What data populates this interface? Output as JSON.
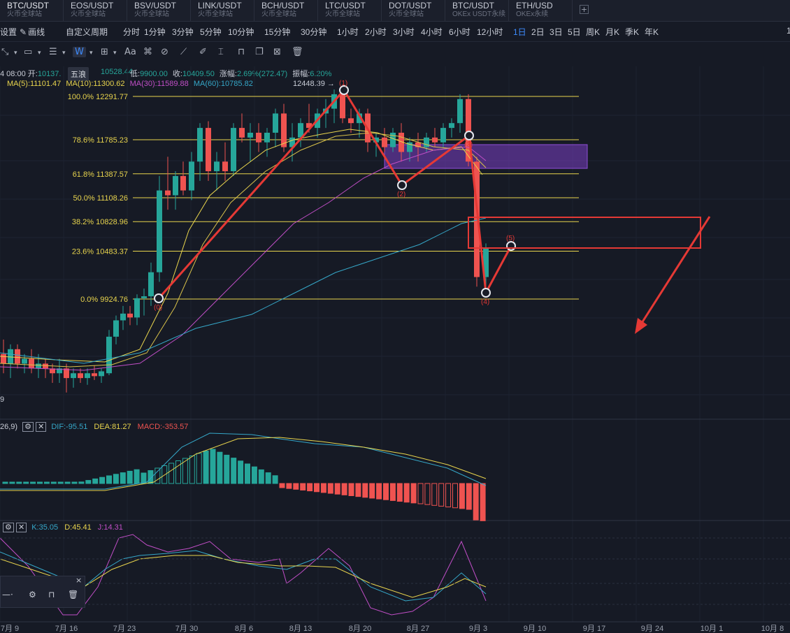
{
  "tabs": [
    {
      "pair": "BTC/USDT",
      "exchange": "火币全球站"
    },
    {
      "pair": "EOS/USDT",
      "exchange": "火币全球站"
    },
    {
      "pair": "BSV/USDT",
      "exchange": "火币全球站"
    },
    {
      "pair": "LINK/USDT",
      "exchange": "火币全球站"
    },
    {
      "pair": "BCH/USDT",
      "exchange": "火币全球站"
    },
    {
      "pair": "LTC/USDT",
      "exchange": "火币全球站"
    },
    {
      "pair": "DOT/USDT",
      "exchange": "火币全球站"
    },
    {
      "pair": "BTC/USDT",
      "exchange": "OKEx USDT永续"
    },
    {
      "pair": "ETH/USD",
      "exchange": "OKEx永续"
    }
  ],
  "tab_add": "+",
  "toolbar": {
    "settings": "设置",
    "draw": "画线",
    "custom_period": "自定义周期",
    "periods": [
      "分时",
      "1分钟",
      "3分钟",
      "5分钟",
      "10分钟",
      "15分钟",
      "30分钟",
      "1小时",
      "2小时",
      "3小时",
      "4小时",
      "6小时",
      "12小时",
      "1日",
      "2日",
      "3日",
      "5日",
      "周K",
      "月K",
      "季K",
      "年K"
    ],
    "selected_period": "1日",
    "edge": "1"
  },
  "draw_tools": {
    "font_label": "Aa",
    "tooltip": "五浪"
  },
  "ohlc": {
    "date": "4 08:00",
    "open_label": "开:",
    "open": "10137.",
    "high_partial": "10528.44",
    "low_label": "低:",
    "low": "9900.00",
    "close_label": "收:",
    "close": "10409.50",
    "change_label": "涨幅:",
    "change": "2.69%(272.47)",
    "amp_label": "振幅:",
    "amp": "6.20%"
  },
  "ma": {
    "ma5": "MA(5):11101.47",
    "ma10": "MA(10):11300.62",
    "ma30": "MA(30):11589.88",
    "ma60": "MA(60):10785.82",
    "high_marker": "12448.39 →"
  },
  "fib_levels": [
    {
      "label": "100.0% 12291.77",
      "price": 12291.77
    },
    {
      "label": "78.6% 11785.23",
      "price": 11785.23
    },
    {
      "label": "61.8% 11387.57",
      "price": 11387.57
    },
    {
      "label": "50.0% 11108.26",
      "price": 11108.26
    },
    {
      "label": "38.2% 10828.96",
      "price": 10828.96
    },
    {
      "label": "23.6% 10483.37",
      "price": 10483.37
    },
    {
      "label": "0.0% 9924.76",
      "price": 9924.76
    }
  ],
  "waves": [
    "(0)",
    "(1)",
    "(2)",
    "(3)",
    "(4)",
    "(5)"
  ],
  "macd": {
    "params": "26,9)",
    "dif": "DIF:-95.51",
    "dea": "DEA:81.27",
    "macd": "MACD:-353.57"
  },
  "kdj": {
    "k": "K:35.05",
    "d": "D:45.41",
    "j": "J:14.31"
  },
  "xaxis": [
    "7月 9",
    "7月 16",
    "7月 23",
    "7月 30",
    "8月 6",
    "8月 13",
    "8月 20",
    "8月 27",
    "9月 3",
    "9月 10",
    "9月 17",
    "9月 24",
    "10月 1",
    "10月 8"
  ],
  "left_edge_label": "9",
  "mini_panel": {
    "close": "×"
  },
  "colors": {
    "up": "#26a69a",
    "down": "#ef5350",
    "fib": "#e8d44d",
    "wave": "#e53935",
    "box": "#7b3fc4",
    "ma5": "#e8d44d",
    "ma10": "#e8d44d",
    "ma30": "#c04ec6",
    "ma60": "#35a7c8",
    "accent": "#3d8bfd"
  }
}
